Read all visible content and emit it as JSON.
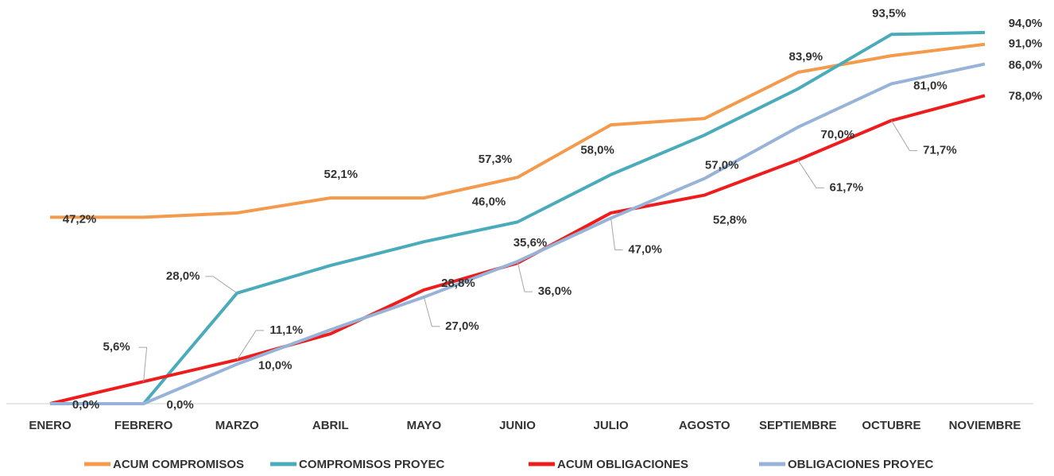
{
  "chart_data": {
    "type": "line",
    "categories": [
      "ENERO",
      "FEBRERO",
      "MARZO",
      "ABRIL",
      "MAYO",
      "JUNIO",
      "JULIO",
      "AGOSTO",
      "SEPTIEMBRE",
      "OCTUBRE",
      "NOVIEMBRE"
    ],
    "ylim": [
      0,
      100
    ],
    "series": [
      {
        "name": "ACUM COMPROMISOS",
        "color": "#f39a4c",
        "values": [
          47.2,
          47.2,
          48.3,
          52.1,
          52.1,
          57.3,
          70.6,
          72.2,
          83.9,
          88.1,
          91.0
        ],
        "value_labels": [
          "47,2%",
          null,
          null,
          "52,1%",
          null,
          "57,3%",
          null,
          null,
          "83,9%",
          null,
          "91,0%"
        ]
      },
      {
        "name": "COMPROMISOS PROYEC",
        "color": "#4aabbb",
        "values": [
          0,
          0,
          28.0,
          35.0,
          41.0,
          46.0,
          58.0,
          68.0,
          79.7,
          93.5,
          94.0
        ],
        "value_labels": [
          null,
          null,
          "28,0%",
          null,
          null,
          "46,0%",
          "58,0%",
          null,
          null,
          "93,5%",
          "94,0%"
        ]
      },
      {
        "name": "ACUM OBLIGACIONES",
        "color": "#ee1c1c",
        "values": [
          0.0,
          5.6,
          11.1,
          17.7,
          28.8,
          35.6,
          48.3,
          52.8,
          61.7,
          71.7,
          78.0
        ],
        "value_labels": [
          "0,0%",
          "5,6%",
          "11,1%",
          null,
          "28,8%",
          "35,6%",
          null,
          "52,8%",
          "61,7%",
          "71,7%",
          "78,0%"
        ]
      },
      {
        "name": "OBLIGACIONES PROYEC",
        "color": "#97b3d7",
        "values": [
          0,
          0.0,
          10.0,
          18.7,
          27.0,
          36.0,
          47.0,
          57.0,
          70.0,
          81.0,
          86.0
        ],
        "value_labels": [
          null,
          "0,0%",
          "10,0%",
          null,
          "27,0%",
          "36,0%",
          "47,0%",
          "57,0%",
          "70,0%",
          "81,0%",
          "86,0%"
        ]
      }
    ]
  }
}
